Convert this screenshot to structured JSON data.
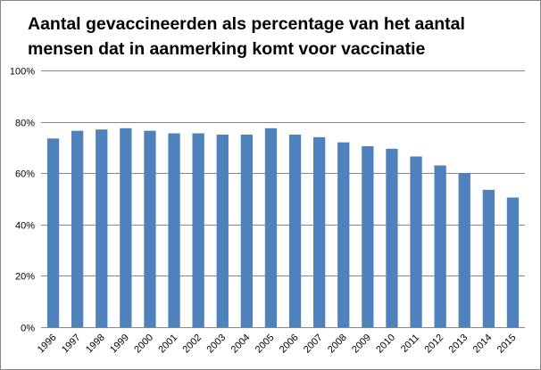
{
  "chart_data": {
    "type": "bar",
    "title": "Aantal gevaccineerden als percentage van het aantal mensen dat in aanmerking komt voor vaccinatie",
    "categories": [
      "1996",
      "1997",
      "1998",
      "1999",
      "2000",
      "2001",
      "2002",
      "2003",
      "2004",
      "2005",
      "2006",
      "2007",
      "2008",
      "2009",
      "2010",
      "2011",
      "2012",
      "2013",
      "2014",
      "2015"
    ],
    "values": [
      73.5,
      76.5,
      77,
      77.5,
      76.5,
      75.5,
      75.5,
      75,
      75,
      77.5,
      75,
      74,
      72,
      70.5,
      69.5,
      66.5,
      63,
      60,
      53.5,
      50.5
    ],
    "ylim": [
      0,
      100
    ],
    "yticks": [
      "0%",
      "20%",
      "40%",
      "60%",
      "80%",
      "100%"
    ],
    "ytick_values": [
      0,
      20,
      40,
      60,
      80,
      100
    ],
    "grid": true,
    "legend": "none",
    "bar_color": "#4f81bd",
    "grid_color": "#878787"
  }
}
